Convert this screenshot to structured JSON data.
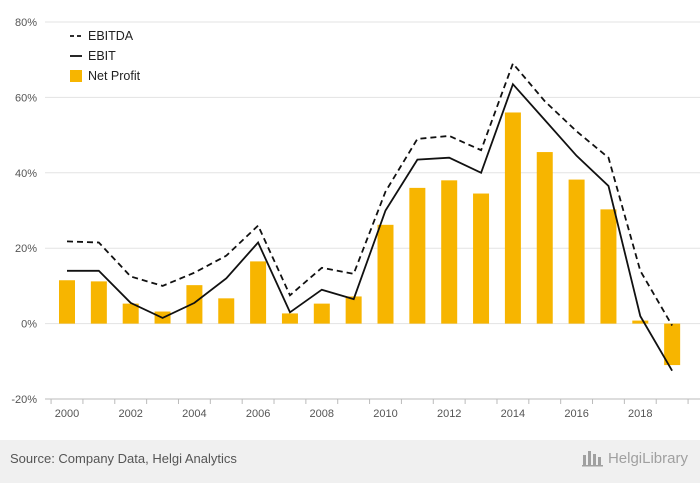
{
  "chart_data": {
    "type": "bar",
    "x": [
      2000,
      2001,
      2002,
      2003,
      2004,
      2005,
      2006,
      2007,
      2008,
      2009,
      2010,
      2011,
      2012,
      2013,
      2014,
      2015,
      2016,
      2017,
      2018,
      2019
    ],
    "x_tick_labels": [
      "2000",
      "2002",
      "2004",
      "2006",
      "2008",
      "2010",
      "2012",
      "2014",
      "2016",
      "2018"
    ],
    "y_tick_labels": [
      "80%",
      "60%",
      "40%",
      "20%",
      "0%",
      "-20%"
    ],
    "y_ticks": [
      80,
      60,
      40,
      20,
      0,
      -20
    ],
    "ylim": [
      -20,
      80
    ],
    "y_unit": "%",
    "grid": "horizontal",
    "legend_position": "top-left",
    "series": [
      {
        "name": "EBITDA",
        "type": "line",
        "style": "dashed",
        "color": "#111111",
        "values": [
          21.8,
          21.5,
          12.5,
          10.0,
          13.5,
          18.0,
          26.0,
          7.5,
          14.8,
          13.2,
          35.0,
          49.0,
          49.8,
          46.0,
          69.0,
          59.0,
          51.0,
          44.0,
          14.0,
          -0.5
        ]
      },
      {
        "name": "EBIT",
        "type": "line",
        "style": "solid",
        "color": "#111111",
        "values": [
          14.0,
          14.0,
          5.5,
          1.5,
          5.5,
          12.0,
          21.5,
          3.0,
          9.0,
          6.5,
          30.0,
          43.5,
          44.0,
          40.0,
          63.5,
          54.0,
          44.5,
          36.5,
          2.0,
          -12.5
        ]
      },
      {
        "name": "Net Profit",
        "type": "bar",
        "color": "#f7b500",
        "values": [
          11.5,
          11.2,
          5.3,
          3.2,
          10.2,
          6.7,
          16.5,
          2.7,
          5.3,
          7.2,
          26.2,
          36.0,
          38.0,
          34.5,
          56.0,
          45.5,
          38.2,
          30.3,
          0.8,
          -11.0
        ]
      }
    ]
  },
  "footer": {
    "source": "Source: Company Data, Helgi Analytics",
    "brand": "HelgiLibrary"
  },
  "colors": {
    "bar": "#f7b500",
    "line": "#111111",
    "grid": "#e3e3e3",
    "footer_bg": "#f0f0f0"
  }
}
